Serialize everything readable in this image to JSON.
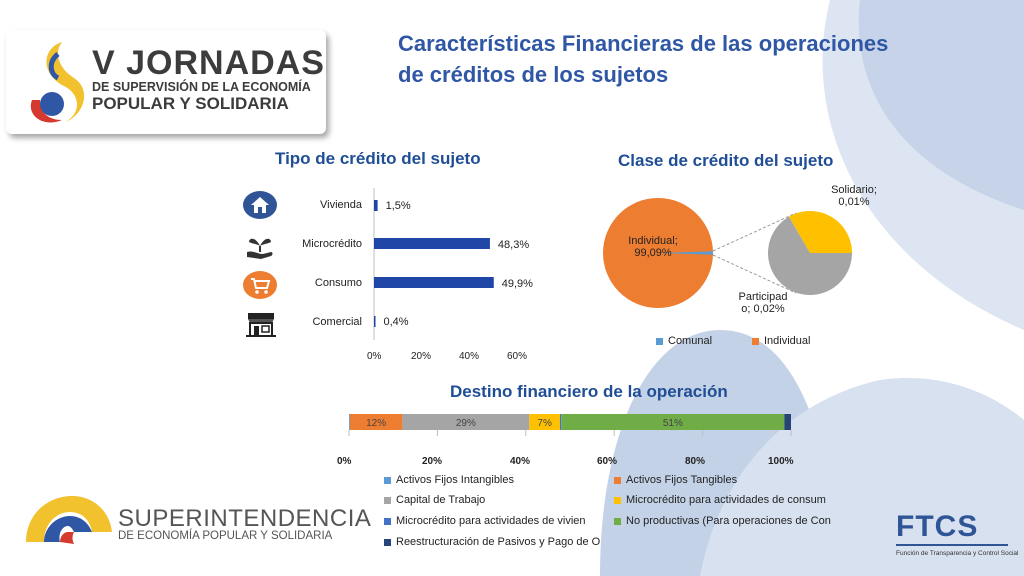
{
  "header": {
    "logo_line1": "V JORNADAS",
    "logo_line2": "DE SUPERVISIÓN DE LA ECONOMÍA",
    "logo_line3": "POPULAR Y SOLIDARIA",
    "title": "Características Financieras de las operaciones de créditos de los sujetos"
  },
  "footer": {
    "sup_line1": "SUPERINTENDENCIA",
    "sup_line2": "DE ECONOMÍA POPULAR Y SOLIDARIA",
    "ftcs_title": "FTCS",
    "ftcs_sub": "Función de Transparencia y Control Social"
  },
  "colors": {
    "title_blue": "#2f57a6",
    "bar_blue": "#1f46a6",
    "orange": "#ed7d31",
    "gray": "#a5a5a5",
    "gold": "#ffc000",
    "steel": "#5b9bd5",
    "green": "#70ad47",
    "navy": "#264478"
  },
  "icons": [
    "house-icon",
    "plant-hand-icon",
    "cart-icon",
    "store-icon"
  ],
  "chart_data": [
    {
      "type": "bar",
      "orientation": "horizontal",
      "title": "Tipo de crédito del sujeto",
      "categories": [
        "Vivienda",
        "Microcrédito",
        "Consumo",
        "Comercial"
      ],
      "values": [
        1.5,
        48.3,
        49.9,
        0.4
      ],
      "value_labels": [
        "1,5%",
        "48,3%",
        "49,9%",
        "0,4%"
      ],
      "xlim": [
        0,
        60
      ],
      "xticks": [
        "0%",
        "20%",
        "40%",
        "60%"
      ]
    },
    {
      "type": "pie",
      "subtype": "pie-of-pie",
      "title": "Clase de crédito del sujeto",
      "slices": [
        {
          "name": "Individual",
          "value": 99.09,
          "label": "Individual;\n99,09%"
        },
        {
          "name": "Comunal",
          "value": 0.88
        }
      ],
      "secondary_slices": [
        {
          "name": "Participado",
          "value": 0.02,
          "label": "Participad\no; 0,02%"
        },
        {
          "name": "Solidario",
          "value": 0.01,
          "label": "Solidario;\n0,01%"
        }
      ],
      "legend": [
        "Comunal",
        "Individual"
      ],
      "legend_position": "bottom"
    },
    {
      "type": "bar",
      "subtype": "stacked-100",
      "orientation": "horizontal",
      "title": "Destino financiero de la operación",
      "xticks": [
        "0%",
        "20%",
        "40%",
        "60%",
        "80%",
        "100%"
      ],
      "series": [
        {
          "name": "Activos Fijos Intangibles",
          "value": 0.2
        },
        {
          "name": "Activos Fijos Tangibles",
          "value": 12,
          "label": "12%"
        },
        {
          "name": "Capital de Trabajo",
          "value": 29,
          "label": "29%"
        },
        {
          "name": "Microcrédito para actividades de consum",
          "value": 7,
          "label": "7%"
        },
        {
          "name": "Microcrédito para actividades de vivien",
          "value": 0.3
        },
        {
          "name": "No productivas (Para operaciones de Con",
          "value": 51,
          "label": "51%"
        },
        {
          "name": "Reestructuración de Pasivos y Pago de O",
          "value": 1.5
        }
      ],
      "legend_position": "bottom"
    }
  ]
}
